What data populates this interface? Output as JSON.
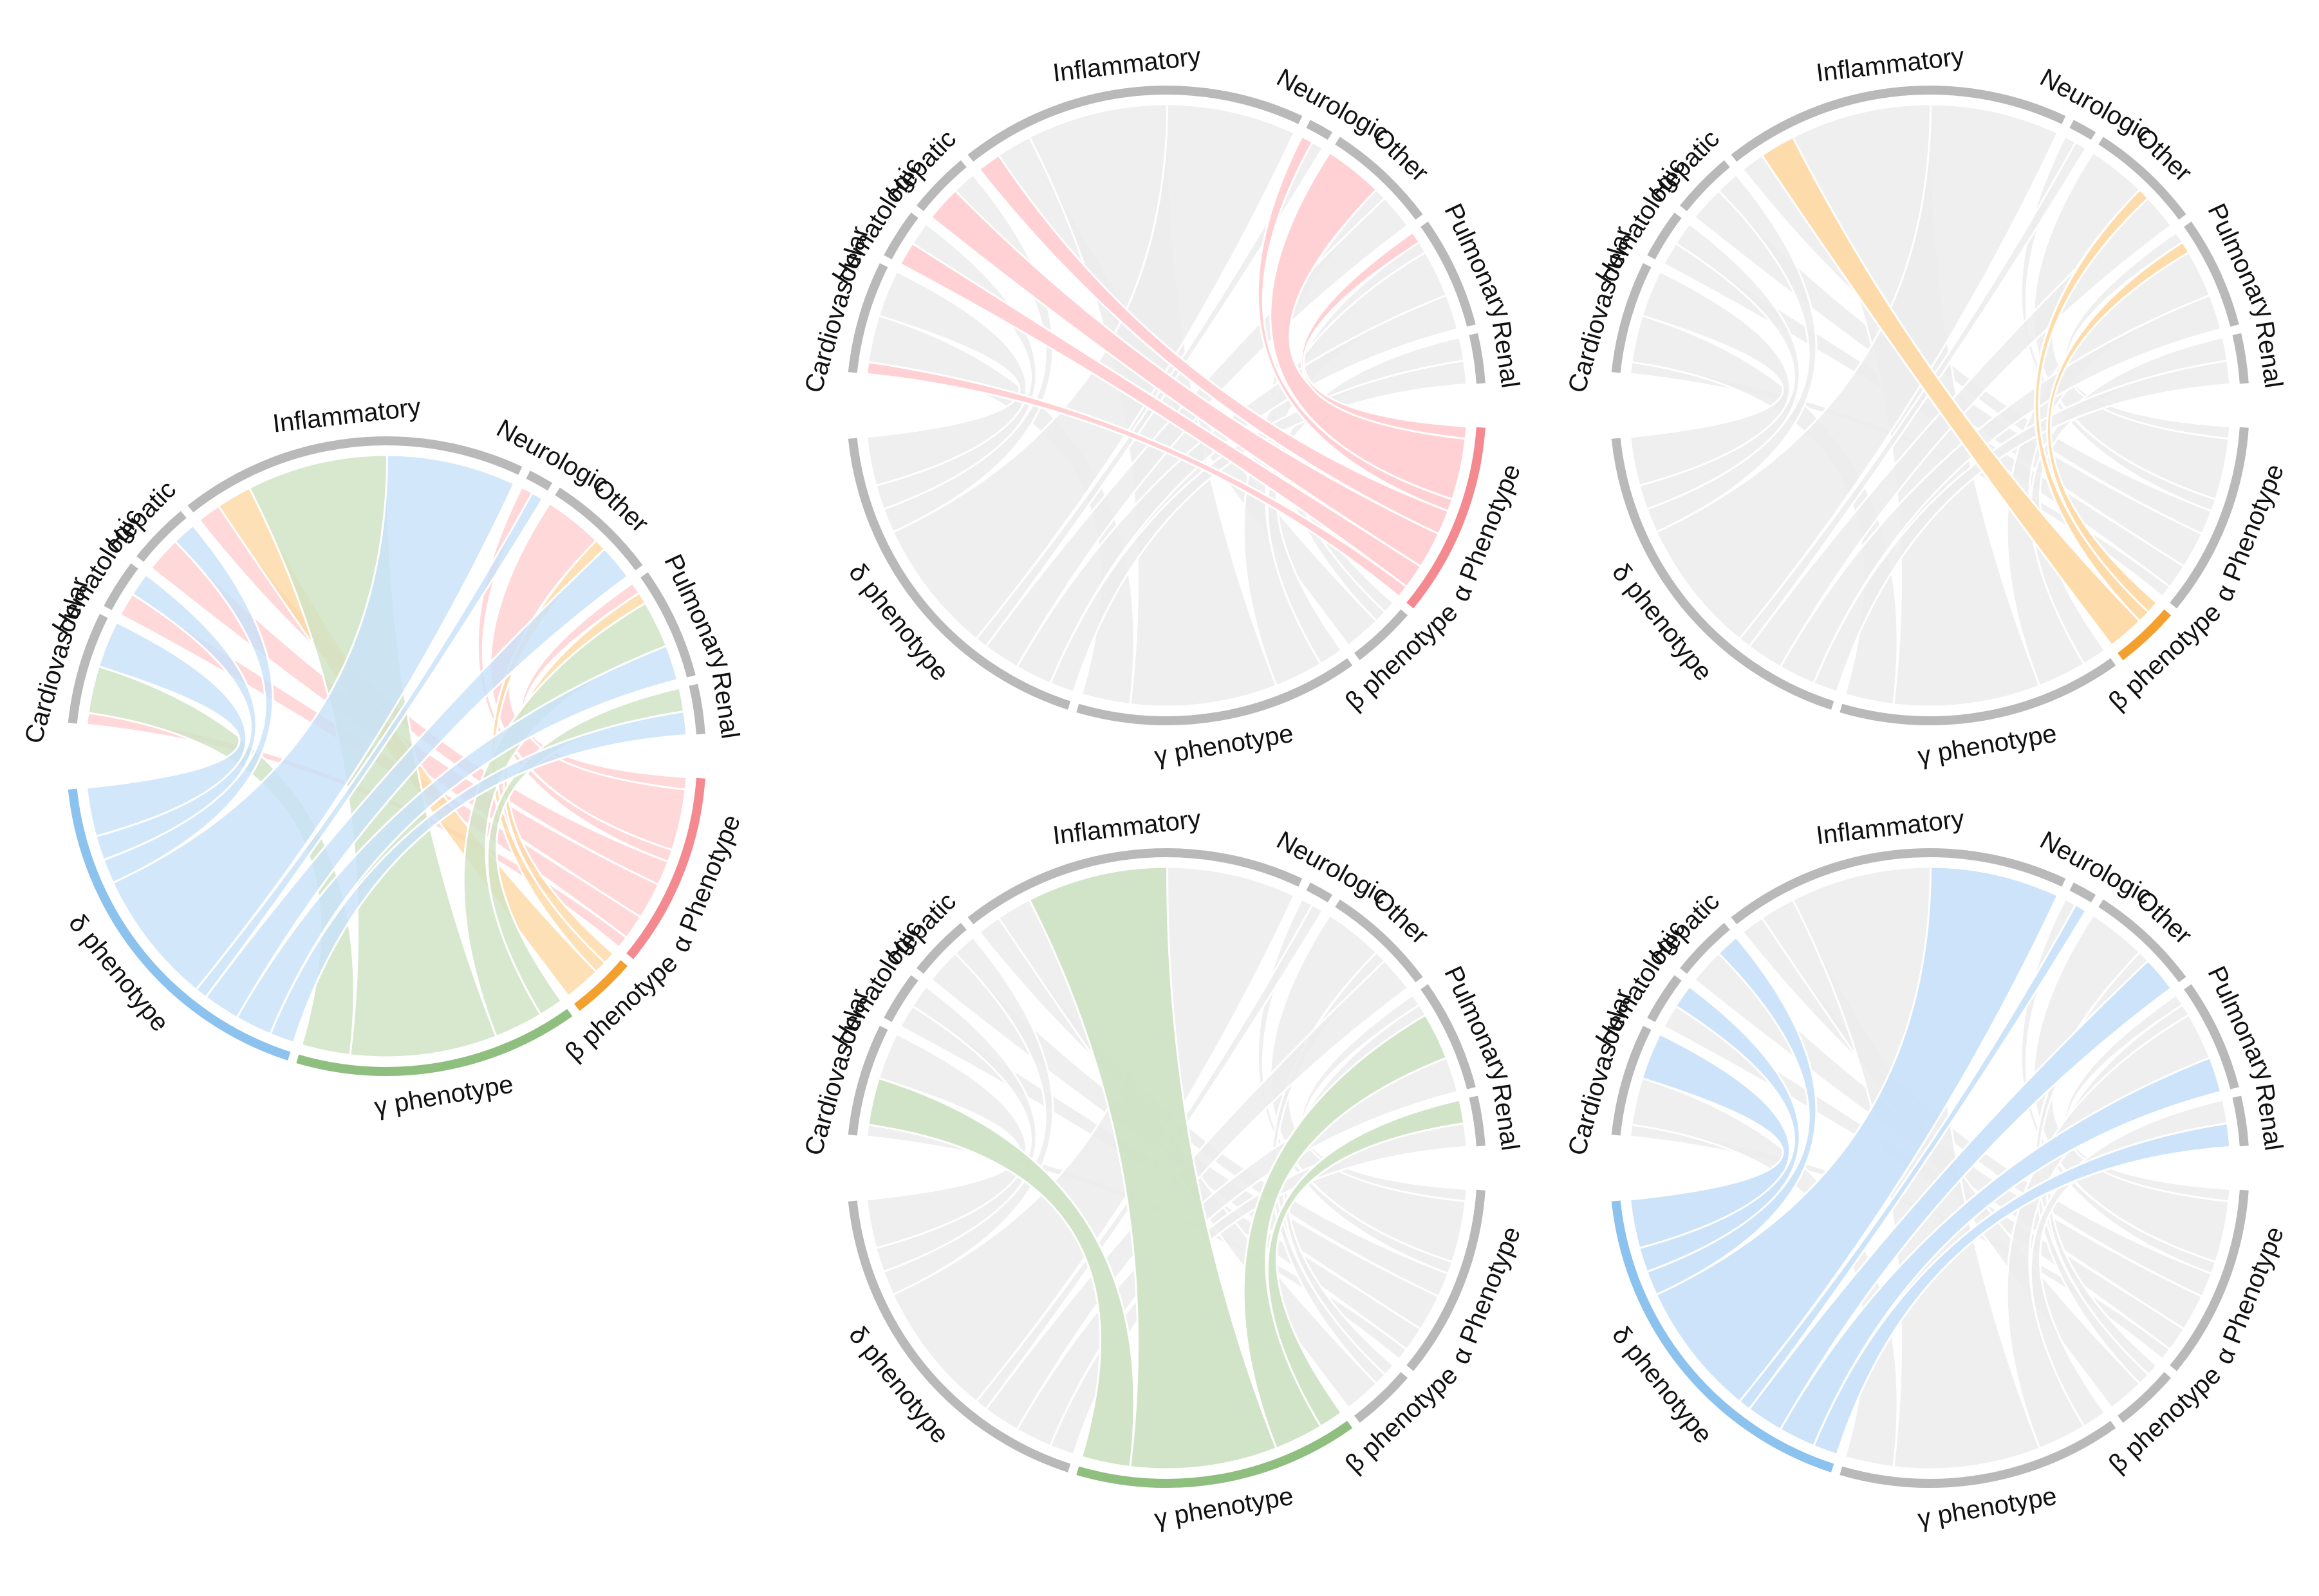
{
  "categories": {
    "organs": [
      "Cardiovascular",
      "Hematologic",
      "Hepatic",
      "Inflammatory",
      "Neurologic",
      "Other",
      "Pulmonary",
      "Renal"
    ],
    "phenotypes": [
      "α Phenotype",
      "β phenotype",
      "γ phenotype",
      "δ phenotype"
    ]
  },
  "colors": {
    "α Phenotype": "#f4898f",
    "β phenotype": "#f4a02f",
    "γ phenotype": "#8fbf7f",
    "δ phenotype": "#8cc2ee",
    "ribbon_α Phenotype": "#ffcfd2",
    "ribbon_β phenotype": "#fdd9a5",
    "ribbon_γ phenotype": "#cfe3c5",
    "ribbon_δ phenotype": "#c9e2f9",
    "inactive_arc": "#b9b9b9",
    "inactive_ribbon": "#ececec"
  },
  "panels": [
    {
      "id": "all",
      "highlight": "all"
    },
    {
      "id": "alpha",
      "highlight": "α Phenotype"
    },
    {
      "id": "beta",
      "highlight": "β phenotype"
    },
    {
      "id": "gamma",
      "highlight": "γ phenotype"
    },
    {
      "id": "delta",
      "highlight": "δ phenotype"
    }
  ],
  "chart_data": {
    "type": "chord",
    "sources": [
      "α Phenotype",
      "β phenotype",
      "γ phenotype",
      "δ phenotype"
    ],
    "targets": [
      "Cardiovascular",
      "Hematologic",
      "Hepatic",
      "Inflammatory",
      "Neurologic",
      "Other",
      "Pulmonary",
      "Renal"
    ],
    "links": [
      {
        "source": "α Phenotype",
        "target": "Cardiovascular",
        "value": 1
      },
      {
        "source": "α Phenotype",
        "target": "Hematologic",
        "value": 2
      },
      {
        "source": "α Phenotype",
        "target": "Hepatic",
        "value": 3
      },
      {
        "source": "α Phenotype",
        "target": "Inflammatory",
        "value": 2
      },
      {
        "source": "α Phenotype",
        "target": "Neurologic",
        "value": 1
      },
      {
        "source": "α Phenotype",
        "target": "Other",
        "value": 5
      },
      {
        "source": "α Phenotype",
        "target": "Pulmonary",
        "value": 1
      },
      {
        "source": "β phenotype",
        "target": "Inflammatory",
        "value": 3
      },
      {
        "source": "β phenotype",
        "target": "Other",
        "value": 1
      },
      {
        "source": "β phenotype",
        "target": "Pulmonary",
        "value": 1
      },
      {
        "source": "γ phenotype",
        "target": "Cardiovascular",
        "value": 4
      },
      {
        "source": "γ phenotype",
        "target": "Inflammatory",
        "value": 12
      },
      {
        "source": "γ phenotype",
        "target": "Pulmonary",
        "value": 4
      },
      {
        "source": "γ phenotype",
        "target": "Renal",
        "value": 2
      },
      {
        "source": "δ phenotype",
        "target": "Cardiovascular",
        "value": 4
      },
      {
        "source": "δ phenotype",
        "target": "Hematologic",
        "value": 2
      },
      {
        "source": "δ phenotype",
        "target": "Hepatic",
        "value": 2
      },
      {
        "source": "δ phenotype",
        "target": "Inflammatory",
        "value": 11
      },
      {
        "source": "δ phenotype",
        "target": "Neurologic",
        "value": 1
      },
      {
        "source": "δ phenotype",
        "target": "Other",
        "value": 3
      },
      {
        "source": "δ phenotype",
        "target": "Pulmonary",
        "value": 3
      },
      {
        "source": "δ phenotype",
        "target": "Renal",
        "value": 2
      }
    ]
  }
}
